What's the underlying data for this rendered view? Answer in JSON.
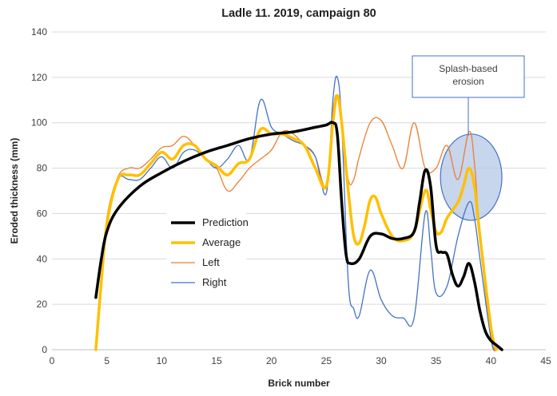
{
  "chart_data": {
    "type": "line",
    "title": "Ladle 11. 2019, campaign 80",
    "xlabel": "Brick number",
    "ylabel": "Eroded thickness (mm)",
    "xlim": [
      0,
      45
    ],
    "ylim": [
      0,
      140
    ],
    "xticks": [
      0,
      5,
      10,
      15,
      20,
      25,
      30,
      35,
      40,
      45
    ],
    "yticks": [
      0,
      20,
      40,
      60,
      80,
      100,
      120,
      140
    ],
    "grid": "horizontal",
    "legend_position": "center-left",
    "series": [
      {
        "name": "Prediction",
        "color": "#000000",
        "stroke_width": 3.5,
        "points": [
          [
            4,
            23
          ],
          [
            4.5,
            40
          ],
          [
            5,
            52
          ],
          [
            6,
            62
          ],
          [
            8,
            72
          ],
          [
            10,
            78
          ],
          [
            12,
            83
          ],
          [
            14,
            87
          ],
          [
            16,
            90
          ],
          [
            18,
            93
          ],
          [
            20,
            95
          ],
          [
            22,
            96
          ],
          [
            24,
            98
          ],
          [
            25,
            99
          ],
          [
            25.6,
            100
          ],
          [
            26,
            95
          ],
          [
            26.4,
            65
          ],
          [
            26.8,
            42
          ],
          [
            27.2,
            38
          ],
          [
            28,
            40
          ],
          [
            29,
            50
          ],
          [
            30,
            51
          ],
          [
            31,
            49
          ],
          [
            32,
            49
          ],
          [
            33,
            52
          ],
          [
            33.5,
            65
          ],
          [
            34,
            79
          ],
          [
            34.5,
            72
          ],
          [
            35,
            46
          ],
          [
            35.5,
            43
          ],
          [
            36,
            42
          ],
          [
            36.5,
            33
          ],
          [
            37,
            28
          ],
          [
            37.5,
            32
          ],
          [
            38,
            38
          ],
          [
            38.5,
            30
          ],
          [
            39,
            17
          ],
          [
            39.5,
            8
          ],
          [
            40,
            4
          ],
          [
            40.5,
            2
          ],
          [
            41,
            0
          ]
        ]
      },
      {
        "name": "Average",
        "color": "#ffc000",
        "stroke_width": 3.5,
        "points": [
          [
            4,
            0
          ],
          [
            4.5,
            30
          ],
          [
            5,
            55
          ],
          [
            6,
            75
          ],
          [
            7,
            77
          ],
          [
            8,
            77
          ],
          [
            9,
            82
          ],
          [
            10,
            87
          ],
          [
            11,
            84
          ],
          [
            12,
            90
          ],
          [
            13,
            90
          ],
          [
            14,
            84
          ],
          [
            15,
            81
          ],
          [
            16,
            77
          ],
          [
            17,
            82
          ],
          [
            18,
            84
          ],
          [
            19,
            97
          ],
          [
            20,
            95
          ],
          [
            21,
            95
          ],
          [
            22,
            93
          ],
          [
            23,
            90
          ],
          [
            24,
            80
          ],
          [
            25,
            72
          ],
          [
            25.6,
            100
          ],
          [
            26,
            112
          ],
          [
            26.4,
            100
          ],
          [
            27,
            70
          ],
          [
            27.5,
            50
          ],
          [
            28,
            47
          ],
          [
            28.5,
            55
          ],
          [
            29,
            66
          ],
          [
            29.5,
            67
          ],
          [
            30,
            60
          ],
          [
            31,
            50
          ],
          [
            32,
            48
          ],
          [
            33,
            52
          ],
          [
            34,
            70
          ],
          [
            34.5,
            62
          ],
          [
            35,
            52
          ],
          [
            35.5,
            52
          ],
          [
            36,
            58
          ],
          [
            37,
            65
          ],
          [
            37.5,
            72
          ],
          [
            38,
            80
          ],
          [
            38.5,
            72
          ],
          [
            39,
            50
          ],
          [
            40,
            10
          ],
          [
            40.5,
            0
          ]
        ]
      },
      {
        "name": "Left",
        "color": "#ed7d31",
        "stroke_width": 1.3,
        "points": [
          [
            4,
            0
          ],
          [
            4.5,
            30
          ],
          [
            5,
            58
          ],
          [
            6,
            76
          ],
          [
            7,
            80
          ],
          [
            8,
            80
          ],
          [
            9,
            84
          ],
          [
            10,
            89
          ],
          [
            11,
            90
          ],
          [
            12,
            94
          ],
          [
            13,
            90
          ],
          [
            14,
            84
          ],
          [
            15,
            80
          ],
          [
            16,
            70
          ],
          [
            17,
            74
          ],
          [
            18,
            80
          ],
          [
            19,
            84
          ],
          [
            20,
            88
          ],
          [
            21,
            96
          ],
          [
            22,
            95
          ],
          [
            23,
            90
          ],
          [
            24,
            85
          ],
          [
            25,
            72
          ],
          [
            25.6,
            105
          ],
          [
            26,
            112
          ],
          [
            26.4,
            100
          ],
          [
            27,
            75
          ],
          [
            27.5,
            75
          ],
          [
            28,
            85
          ],
          [
            29,
            100
          ],
          [
            30,
            101
          ],
          [
            31,
            90
          ],
          [
            32,
            80
          ],
          [
            33,
            100
          ],
          [
            34,
            80
          ],
          [
            35,
            80
          ],
          [
            36,
            90
          ],
          [
            37,
            75
          ],
          [
            38,
            96
          ],
          [
            38.5,
            82
          ],
          [
            39,
            50
          ],
          [
            40,
            5
          ],
          [
            40.5,
            0
          ]
        ]
      },
      {
        "name": "Right",
        "color": "#4472c4",
        "stroke_width": 1.3,
        "points": [
          [
            4,
            0
          ],
          [
            4.5,
            30
          ],
          [
            5,
            56
          ],
          [
            6,
            75
          ],
          [
            7,
            75
          ],
          [
            8,
            75
          ],
          [
            9,
            80
          ],
          [
            10,
            85
          ],
          [
            11,
            80
          ],
          [
            12,
            87
          ],
          [
            13,
            88
          ],
          [
            14,
            84
          ],
          [
            15,
            80
          ],
          [
            16,
            84
          ],
          [
            17,
            90
          ],
          [
            18,
            84
          ],
          [
            19,
            110
          ],
          [
            20,
            98
          ],
          [
            21,
            95
          ],
          [
            22,
            92
          ],
          [
            23,
            90
          ],
          [
            24,
            85
          ],
          [
            25,
            69
          ],
          [
            25.6,
            110
          ],
          [
            26,
            120
          ],
          [
            26.4,
            100
          ],
          [
            27,
            30
          ],
          [
            27.5,
            18
          ],
          [
            28,
            15
          ],
          [
            29,
            35
          ],
          [
            30,
            22
          ],
          [
            31,
            15
          ],
          [
            32,
            14
          ],
          [
            33,
            14
          ],
          [
            34,
            60
          ],
          [
            34.5,
            45
          ],
          [
            35,
            25
          ],
          [
            36,
            28
          ],
          [
            37,
            50
          ],
          [
            38,
            65
          ],
          [
            38.5,
            58
          ],
          [
            39,
            40
          ],
          [
            40,
            5
          ],
          [
            40.5,
            0
          ]
        ]
      }
    ],
    "annotation": {
      "text_lines": [
        "Splash-based",
        "erosion"
      ],
      "ellipse_center": [
        38.2,
        76
      ],
      "ellipse_radius": [
        2.8,
        19
      ],
      "fill": "#b4c7e7",
      "stroke": "#4472c4"
    }
  }
}
